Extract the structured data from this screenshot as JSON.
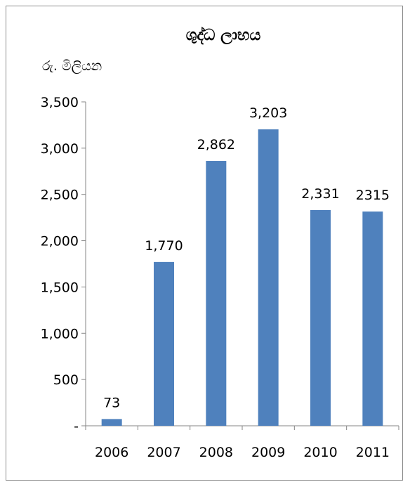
{
  "chart_data": {
    "type": "bar",
    "title": "ශුද්ධ ලාභය",
    "unit_label": "රු. මිලියන",
    "categories": [
      "2006",
      "2007",
      "2008",
      "2009",
      "2010",
      "2011"
    ],
    "values": [
      73,
      1770,
      2862,
      3203,
      2331,
      2315
    ],
    "data_labels": [
      "73",
      "1,770",
      "2,862",
      "3,203",
      "2,331",
      "2315"
    ],
    "y_ticks": [
      0,
      500,
      1000,
      1500,
      2000,
      2500,
      3000,
      3500
    ],
    "y_tick_labels": [
      "-",
      "500",
      "1,000",
      "1,500",
      "2,000",
      "2,500",
      "3,000",
      "3,500"
    ],
    "ylim": [
      0,
      3500
    ],
    "grid": false,
    "legend": "none",
    "bar_color": "#4f81bd",
    "axis_color": "#868686"
  }
}
